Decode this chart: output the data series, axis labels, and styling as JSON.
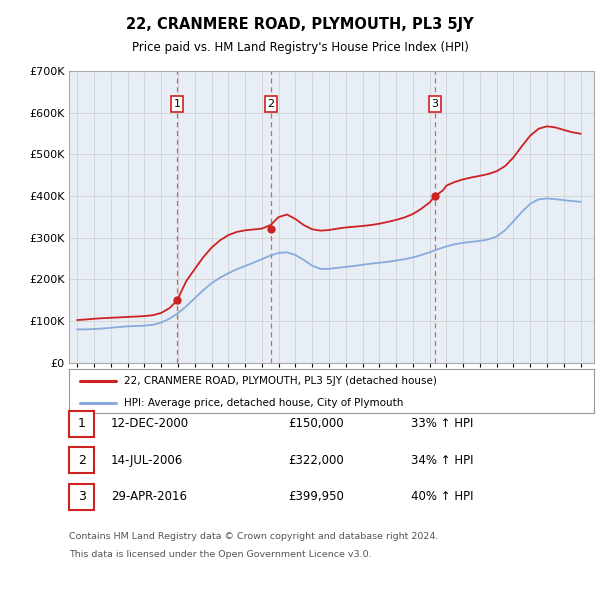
{
  "title": "22, CRANMERE ROAD, PLYMOUTH, PL3 5JY",
  "subtitle": "Price paid vs. HM Land Registry's House Price Index (HPI)",
  "legend_line1": "22, CRANMERE ROAD, PLYMOUTH, PL3 5JY (detached house)",
  "legend_line2": "HPI: Average price, detached house, City of Plymouth",
  "footnote1": "Contains HM Land Registry data © Crown copyright and database right 2024.",
  "footnote2": "This data is licensed under the Open Government Licence v3.0.",
  "table": [
    {
      "num": "1",
      "date": "12-DEC-2000",
      "price": "£150,000",
      "hpi": "33% ↑ HPI"
    },
    {
      "num": "2",
      "date": "14-JUL-2006",
      "price": "£322,000",
      "hpi": "34% ↑ HPI"
    },
    {
      "num": "3",
      "date": "29-APR-2016",
      "price": "£399,950",
      "hpi": "40% ↑ HPI"
    }
  ],
  "sale_dates": [
    2000.95,
    2006.54,
    2016.33
  ],
  "sale_prices": [
    150000,
    322000,
    399950
  ],
  "sale_labels": [
    "1",
    "2",
    "3"
  ],
  "red_line_color": "#cc2222",
  "blue_line_color": "#88aadd",
  "sale_dot_color": "#cc2222",
  "vline_color": "#dd4444",
  "grid_color": "#cccccc",
  "chart_bg_color": "#e8eef5",
  "bg_color": "#ffffff",
  "ylim": [
    0,
    700000
  ],
  "yticks": [
    0,
    100000,
    200000,
    300000,
    400000,
    500000,
    600000,
    700000
  ],
  "xlim_start": 1994.5,
  "xlim_end": 2025.8,
  "red_data_x": [
    1995.0,
    1995.5,
    1996.0,
    1996.5,
    1997.0,
    1997.5,
    1998.0,
    1998.5,
    1999.0,
    1999.5,
    2000.0,
    2000.5,
    2000.95,
    2001.2,
    2001.5,
    2002.0,
    2002.5,
    2003.0,
    2003.5,
    2004.0,
    2004.5,
    2005.0,
    2005.5,
    2006.0,
    2006.54,
    2007.0,
    2007.5,
    2008.0,
    2008.5,
    2009.0,
    2009.5,
    2010.0,
    2010.5,
    2011.0,
    2011.5,
    2012.0,
    2012.5,
    2013.0,
    2013.5,
    2014.0,
    2014.5,
    2015.0,
    2015.5,
    2016.0,
    2016.33,
    2016.8,
    2017.0,
    2017.5,
    2018.0,
    2018.5,
    2019.0,
    2019.5,
    2020.0,
    2020.5,
    2021.0,
    2021.5,
    2022.0,
    2022.5,
    2023.0,
    2023.5,
    2024.0,
    2024.5,
    2025.0
  ],
  "red_data_y": [
    102000,
    104000,
    106000,
    107000,
    108000,
    109000,
    110000,
    111000,
    112000,
    113000,
    118000,
    128000,
    150000,
    170000,
    195000,
    225000,
    255000,
    278000,
    295000,
    308000,
    315000,
    318000,
    320000,
    321000,
    322000,
    358000,
    362000,
    345000,
    328000,
    318000,
    315000,
    318000,
    322000,
    325000,
    326000,
    328000,
    330000,
    333000,
    338000,
    342000,
    348000,
    355000,
    368000,
    385000,
    399950,
    415000,
    425000,
    435000,
    440000,
    445000,
    448000,
    452000,
    458000,
    468000,
    490000,
    520000,
    548000,
    565000,
    570000,
    565000,
    558000,
    552000,
    548000
  ],
  "blue_data_x": [
    1995.0,
    1995.5,
    1996.0,
    1996.5,
    1997.0,
    1997.5,
    1998.0,
    1998.5,
    1999.0,
    1999.5,
    2000.0,
    2000.5,
    2001.0,
    2001.5,
    2002.0,
    2002.5,
    2003.0,
    2003.5,
    2004.0,
    2004.5,
    2005.0,
    2005.5,
    2006.0,
    2006.5,
    2007.0,
    2007.5,
    2008.0,
    2008.5,
    2009.0,
    2009.5,
    2010.0,
    2010.5,
    2011.0,
    2011.5,
    2012.0,
    2012.5,
    2013.0,
    2013.5,
    2014.0,
    2014.5,
    2015.0,
    2015.5,
    2016.0,
    2016.5,
    2017.0,
    2017.5,
    2018.0,
    2018.5,
    2019.0,
    2019.5,
    2020.0,
    2020.5,
    2021.0,
    2021.5,
    2022.0,
    2022.5,
    2023.0,
    2023.5,
    2024.0,
    2024.5,
    2025.0
  ],
  "blue_data_y": [
    80000,
    80000,
    81000,
    82000,
    84000,
    86000,
    88000,
    88000,
    89000,
    90000,
    95000,
    105000,
    118000,
    135000,
    155000,
    175000,
    192000,
    205000,
    215000,
    225000,
    232000,
    240000,
    248000,
    258000,
    265000,
    268000,
    260000,
    248000,
    230000,
    222000,
    225000,
    228000,
    230000,
    232000,
    235000,
    238000,
    240000,
    242000,
    245000,
    248000,
    252000,
    258000,
    265000,
    272000,
    280000,
    285000,
    288000,
    290000,
    292000,
    295000,
    300000,
    315000,
    340000,
    362000,
    385000,
    395000,
    395000,
    392000,
    390000,
    388000,
    385000
  ]
}
